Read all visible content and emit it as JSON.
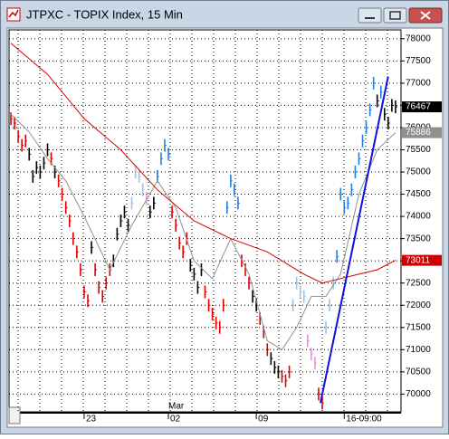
{
  "window_title": "JTPXC - TOPIX Index, 15 Min",
  "chart_data": {
    "type": "line",
    "month_label": "Mar",
    "xlim": [
      -0.5,
      106.5
    ],
    "xticks": [
      {
        "value": 20,
        "label": "23"
      },
      {
        "value": 43,
        "label": "02"
      },
      {
        "value": 67,
        "label": "09"
      },
      {
        "value": 91,
        "label": "16-09:00"
      }
    ],
    "ylim": [
      69600,
      78200
    ],
    "yticks": [
      70000,
      70500,
      71000,
      71500,
      72000,
      72500,
      73000,
      73500,
      74000,
      74500,
      75000,
      75500,
      76000,
      76500,
      77000,
      77500,
      78000
    ],
    "grid": true,
    "series": [
      {
        "color": "#000000",
        "value_box": true,
        "values": [
          76200,
          76100,
          75800,
          75600,
          75700,
          75400,
          74900,
          75100,
          75000,
          75200,
          75500,
          75300,
          75000,
          74800,
          74500,
          74200,
          73900,
          73500,
          73200,
          72800,
          72300,
          72100,
          73300,
          72800,
          72400,
          72200,
          72500,
          72800,
          73000,
          73600,
          73900,
          74100,
          73800,
          74300,
          75000,
          74900,
          74600,
          74400,
          74100,
          74300,
          74900,
          75300,
          75600,
          75400,
          74100,
          73800,
          73400,
          73200,
          73500,
          72900,
          72700,
          72400,
          72800,
          72300,
          72000,
          71800,
          71600,
          71500,
          72000,
          74200,
          74800,
          74600,
          74300,
          73000,
          72800,
          72500,
          72200,
          72000,
          71700,
          71400,
          71000,
          70800,
          70600,
          70500,
          70400,
          70300,
          70500,
          72000,
          72500,
          72300,
          72200,
          71200,
          70900,
          70700,
          70000,
          69800,
          71500,
          72000,
          72500,
          73100,
          74500,
          74200,
          74300,
          74600,
          75000,
          75300,
          75700,
          76000,
          76400,
          77000,
          76600,
          76800,
          76300,
          76100,
          76500,
          76467
        ],
        "colors": [
          "#e00000",
          "#e00000",
          "#e00000",
          "#e00000",
          "#e00000",
          "#000000",
          "#000000",
          "#000000",
          "#000000",
          "#000000",
          "#000000",
          "#e00000",
          "#000000",
          "#e00000",
          "#e00000",
          "#e00000",
          "#e00000",
          "#e00000",
          "#e00000",
          "#e00000",
          "#e00000",
          "#e00000",
          "#000000",
          "#e00000",
          "#e00000",
          "#e00000",
          "#e00000",
          "#e00000",
          "#000000",
          "#000000",
          "#000000",
          "#000000",
          "#000000",
          "#9cc3e6",
          "#9cc3e6",
          "#9cc3e6",
          "#9cc3e6",
          "#f08ce0",
          "#000000",
          "#000000",
          "#1e7fe0",
          "#1e7fe0",
          "#1e7fe0",
          "#1e7fe0",
          "#e00000",
          "#e00000",
          "#e00000",
          "#e00000",
          "#e00000",
          "#000000",
          "#000000",
          "#000000",
          "#000000",
          "#e00000",
          "#e00000",
          "#e00000",
          "#e00000",
          "#e00000",
          "#e00000",
          "#1e7fe0",
          "#1e7fe0",
          "#1e7fe0",
          "#1e7fe0",
          "#e00000",
          "#e00000",
          "#e00000",
          "#000000",
          "#000000",
          "#e00000",
          "#e00000",
          "#e00000",
          "#000000",
          "#000000",
          "#000000",
          "#e00000",
          "#e00000",
          "#e00000",
          "#9cc3e6",
          "#9cc3e6",
          "#9cc3e6",
          "#9cc3e6",
          "#f08ce0",
          "#f08ce0",
          "#f08ce0",
          "#e00000",
          "#e00000",
          "#9cc3e6",
          "#9cc3e6",
          "#9cc3e6",
          "#1e7fe0",
          "#1e7fe0",
          "#1e7fe0",
          "#1e7fe0",
          "#1e7fe0",
          "#1e7fe0",
          "#1e7fe0",
          "#1e7fe0",
          "#1e7fe0",
          "#1e7fe0",
          "#1e7fe0",
          "#000000",
          "#1e7fe0",
          "#000000",
          "#000000",
          "#000000",
          "#000000"
        ]
      },
      {
        "color": "#909090",
        "value_box": true,
        "x": [
          0,
          5,
          10,
          15,
          20,
          27,
          33,
          40,
          45,
          50,
          55,
          60,
          65,
          70,
          74,
          78,
          82,
          86,
          90,
          95,
          100,
          105
        ],
        "values": [
          76300,
          75900,
          75300,
          74800,
          74000,
          72800,
          73800,
          74800,
          74200,
          73000,
          72600,
          73500,
          72700,
          71200,
          71000,
          71500,
          72200,
          72200,
          72700,
          74500,
          75500,
          75886
        ]
      },
      {
        "color": "#d00000",
        "value_box": true,
        "x": [
          0,
          10,
          20,
          30,
          40,
          50,
          60,
          70,
          80,
          85,
          90,
          95,
          100,
          105
        ],
        "values": [
          77900,
          77200,
          76200,
          75500,
          74600,
          73900,
          73500,
          73200,
          72700,
          72500,
          72600,
          72700,
          72800,
          73011
        ]
      },
      {
        "color": "#1010e0",
        "value_box": false,
        "x": [
          84.5,
          103
        ],
        "values": [
          69800,
          77150
        ]
      }
    ]
  }
}
